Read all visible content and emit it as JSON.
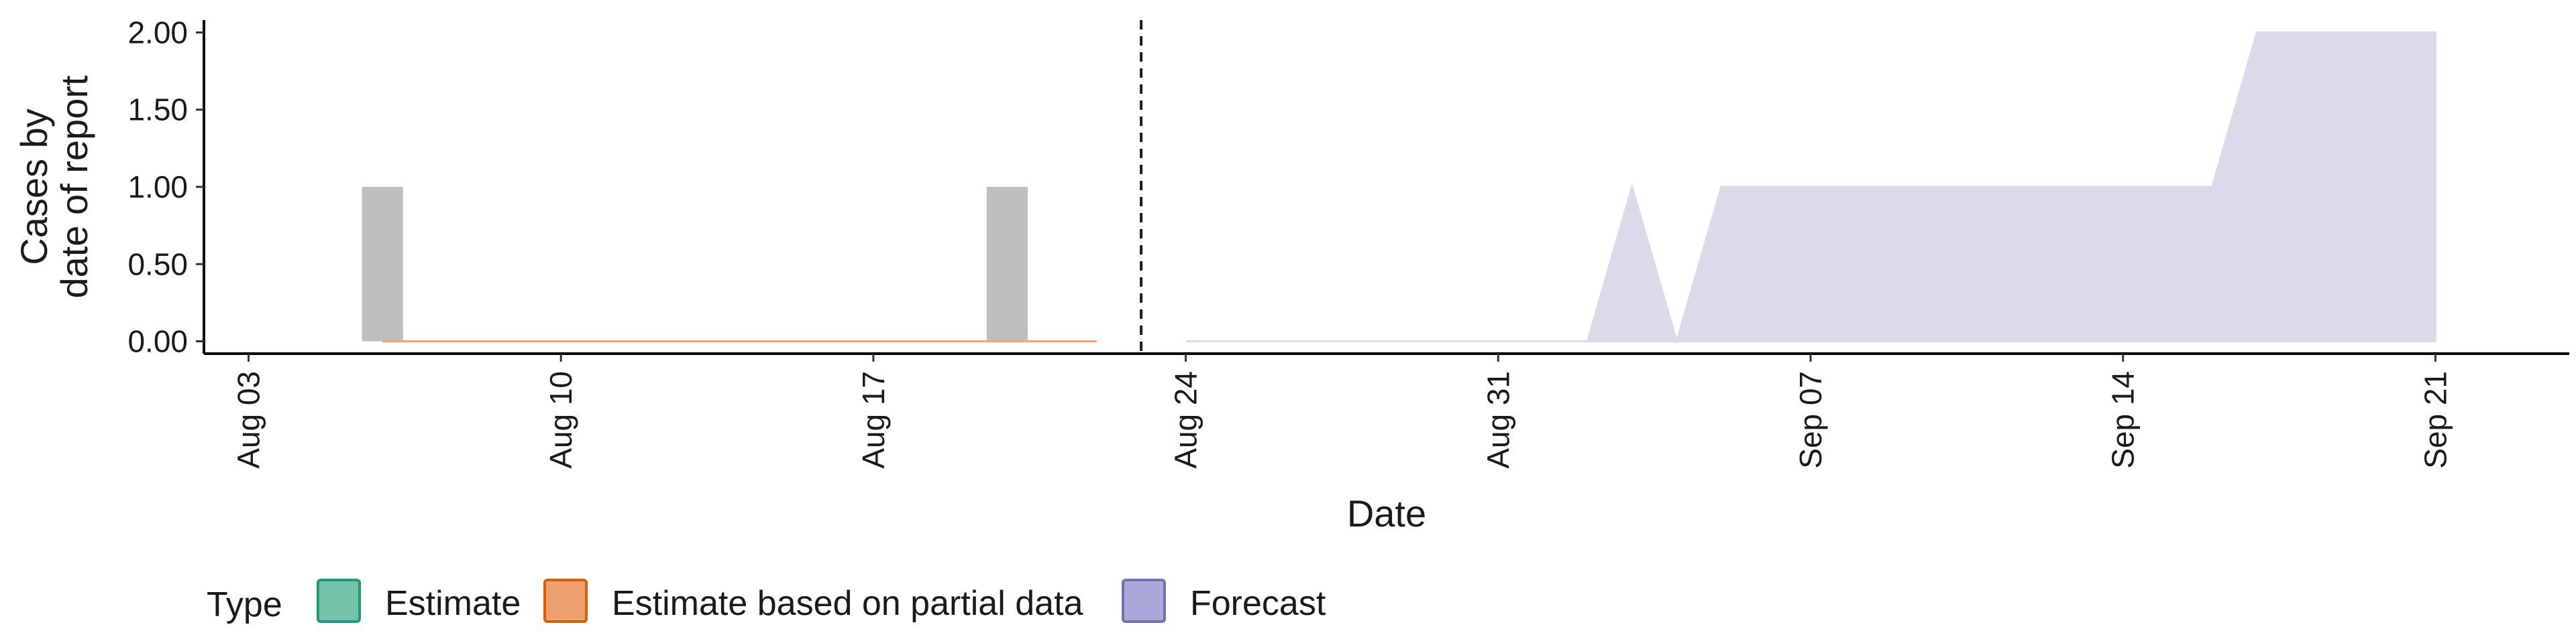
{
  "chart_data": {
    "type": "area",
    "xlabel": "Date",
    "ylabel_lines": [
      "Cases by",
      "date of report"
    ],
    "x_ticks": [
      "2020-08-03",
      "2020-08-10",
      "2020-08-17",
      "2020-08-24",
      "2020-08-31",
      "2020-09-07",
      "2020-09-14",
      "2020-09-21"
    ],
    "x_tick_labels": [
      "Aug 03",
      "Aug 10",
      "Aug 17",
      "Aug 24",
      "Aug 31",
      "Sep 07",
      "Sep 14",
      "Sep 21"
    ],
    "y_ticks": [
      0,
      0.5,
      1,
      1.5,
      2
    ],
    "y_tick_labels": [
      "0.00",
      "0.50",
      "1.00",
      "1.50",
      "2.00"
    ],
    "ylim": [
      -0.08,
      2.08
    ],
    "xlim": [
      "2020-08-02",
      "2020-09-24"
    ],
    "forecast_start": "2020-08-23",
    "reported_cases": {
      "color": "#bebebe",
      "points": [
        {
          "date": "2020-08-06",
          "value": 1
        },
        {
          "date": "2020-08-20",
          "value": 1
        }
      ]
    },
    "series": [
      {
        "name": "Estimate based on partial data",
        "color": "#e6a77a",
        "points": [
          {
            "date": "2020-08-06",
            "value": 0
          },
          {
            "date": "2020-08-22",
            "value": 0
          }
        ]
      },
      {
        "name": "Forecast",
        "color": "#dadaea",
        "points": [
          {
            "date": "2020-08-24",
            "value": 0
          },
          {
            "date": "2020-09-02",
            "value": 0
          },
          {
            "date": "2020-09-03",
            "value": 1
          },
          {
            "date": "2020-09-04",
            "value": 0
          },
          {
            "date": "2020-09-05",
            "value": 1
          },
          {
            "date": "2020-09-16",
            "value": 1
          },
          {
            "date": "2020-09-17",
            "value": 2
          },
          {
            "date": "2020-09-21",
            "value": 2
          }
        ]
      }
    ],
    "legend": {
      "title": "Type",
      "placement": "bottom-left",
      "items": [
        {
          "label": "Estimate",
          "fill": "#74c2a8",
          "stroke": "#1b9e77"
        },
        {
          "label": "Estimate based on partial data",
          "fill": "#eca070",
          "stroke": "#d95f02"
        },
        {
          "label": "Forecast",
          "fill": "#aaa8d6",
          "stroke": "#7570b3"
        }
      ]
    },
    "grid": false
  }
}
